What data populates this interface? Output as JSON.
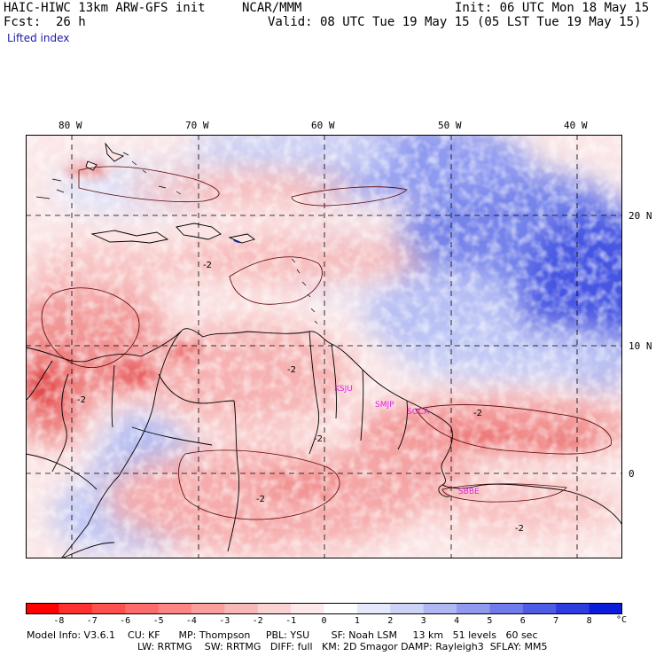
{
  "header": {
    "model": "HAIC-HIWC 13km ARW-GFS init",
    "agency": "NCAR/MMM",
    "fcst_label": "Fcst:",
    "fcst_value": "26 h",
    "init": "Init: 06 UTC Mon 18 May 15",
    "valid": "Valid: 08 UTC Tue 19 May 15 (05 LST Tue 19 May 15)"
  },
  "field_name": "Lifted index",
  "map": {
    "lon_labels": [
      "80 W",
      "70 W",
      "60 W",
      "50 W",
      "40 W"
    ],
    "lat_labels": [
      "20 N",
      "10 N",
      "0"
    ],
    "stations": [
      "KSJU",
      "SMJP",
      "SOCA",
      "SBBE"
    ],
    "contour_labels": [
      "-2",
      "-2",
      "-2",
      "-2",
      "-2",
      "-2",
      "-2"
    ],
    "colors": {
      "strong_neg": "#ff1a1a",
      "neg": "#f6a0a0",
      "neutral": "#ffffff",
      "pos": "#b8c4f4",
      "strong_pos": "#2030d8",
      "station": "#e020e0"
    }
  },
  "colorbar": {
    "ticks": [
      "-8",
      "-7",
      "-6",
      "-5",
      "-4",
      "-3",
      "-2",
      "-1",
      "0",
      "1",
      "2",
      "3",
      "4",
      "5",
      "6",
      "7",
      "8"
    ],
    "unit": "°C",
    "colors": [
      "#ff0000",
      "#ff3030",
      "#ff5050",
      "#ff6a6a",
      "#ff8585",
      "#fb9e9e",
      "#f9b8b8",
      "#fad2d2",
      "#fde9e9",
      "#ffffff",
      "#e6e9fb",
      "#cdd2f7",
      "#b0b8f3",
      "#909bef",
      "#6f7bea",
      "#4e5be5",
      "#2d3ce0",
      "#0a1cda"
    ]
  },
  "footer": {
    "line1": "Model Info: V3.6.1    CU: KF      MP: Thompson     PBL: YSU       SF: Noah LSM     13 km   51 levels   60 sec",
    "line2": "LW: RRTMG    SW: RRTMG   DIFF: full   KM: 2D Smagor DAMP: Rayleigh3  SFLAY: MM5"
  }
}
